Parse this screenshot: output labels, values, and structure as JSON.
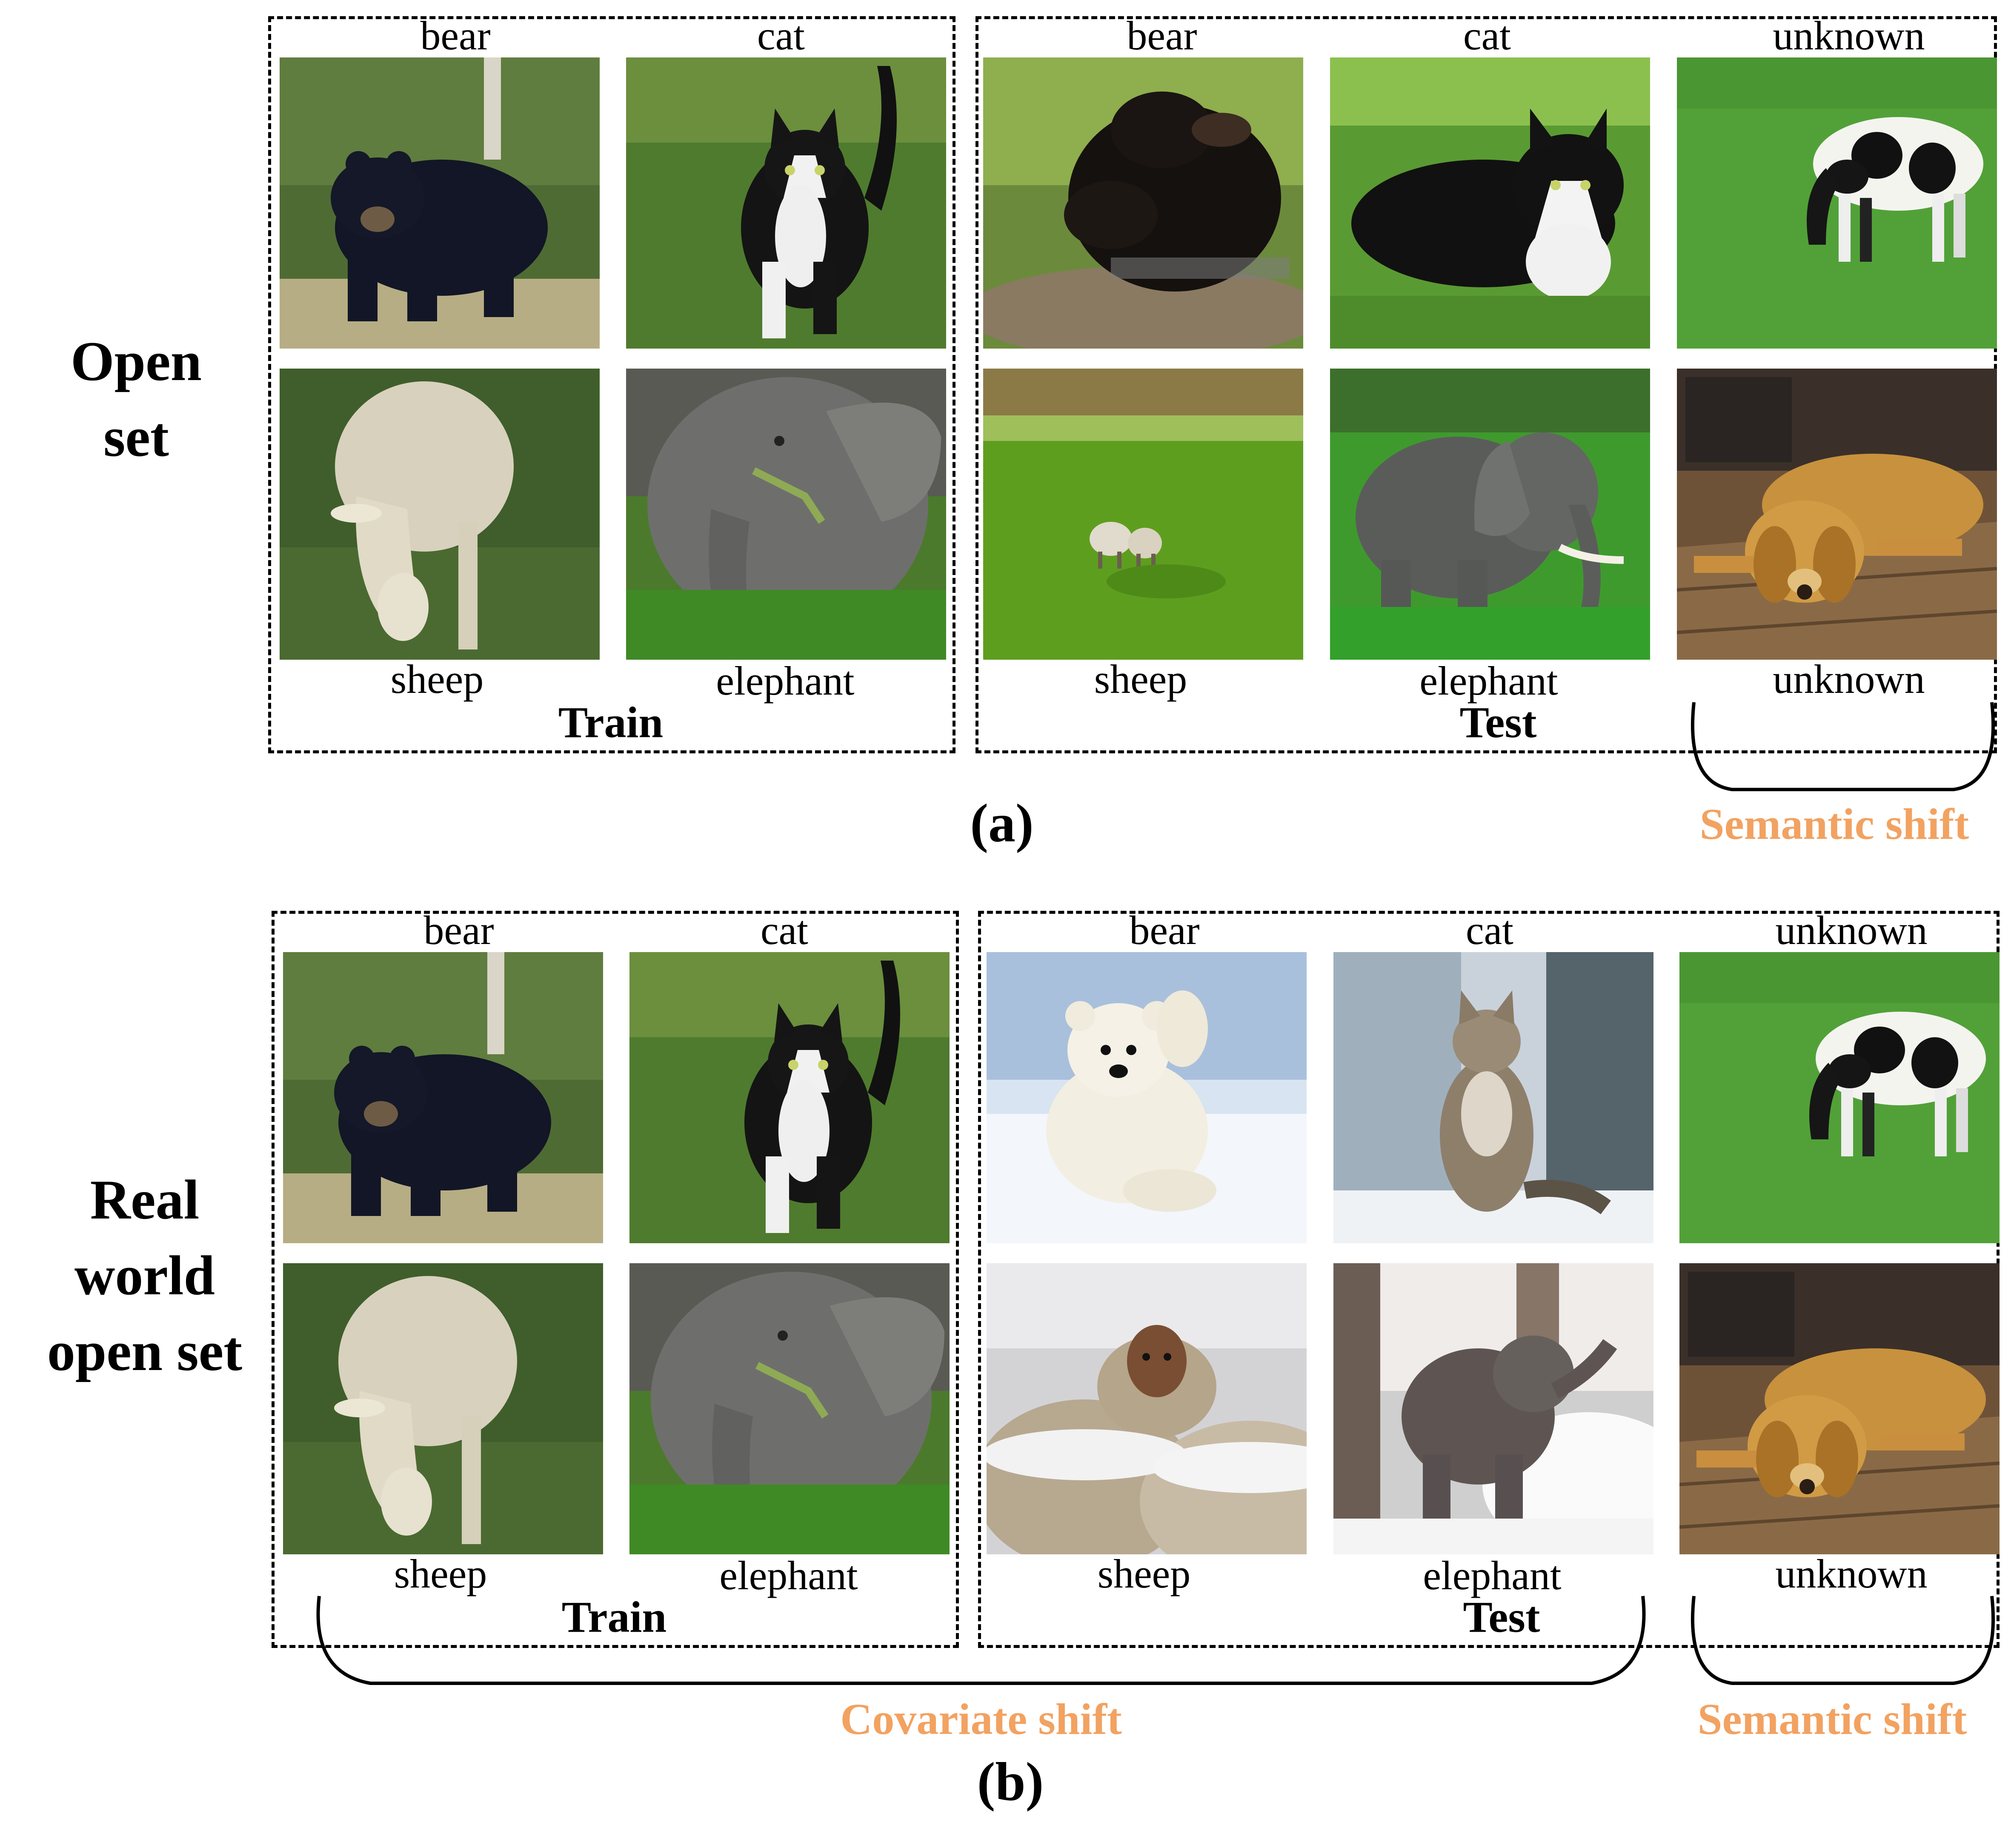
{
  "rows": [
    {
      "title_lines": [
        "Open",
        "set"
      ],
      "panel": "(a)",
      "train_label": "Train",
      "test_label": "Test",
      "train_images": [
        {
          "label": "bear",
          "icon": "black-bear-forest"
        },
        {
          "label": "cat",
          "icon": "black-white-cat-grass"
        },
        {
          "label": "sheep",
          "icon": "sheep-grazing-grass"
        },
        {
          "label": "elephant",
          "icon": "elephant-grass"
        }
      ],
      "test_images": [
        {
          "label": "bear",
          "icon": "black-bear-rock"
        },
        {
          "label": "cat",
          "icon": "black-white-cat-lying-grass"
        },
        {
          "label": "sheep",
          "icon": "sheep-field"
        },
        {
          "label": "elephant",
          "icon": "elephant-meadow"
        }
      ],
      "unknown_images": [
        {
          "label": "unknown",
          "icon": "cow-grass"
        },
        {
          "label": "unknown",
          "icon": "golden-retriever-wood-floor"
        }
      ],
      "shifts": [
        {
          "label": "Semantic shift",
          "color": "#F2A261"
        }
      ]
    },
    {
      "title_lines": [
        "Real",
        "world",
        "open set"
      ],
      "panel": "(b)",
      "train_label": "Train",
      "test_label": "Test",
      "train_images": [
        {
          "label": "bear",
          "icon": "black-bear-forest"
        },
        {
          "label": "cat",
          "icon": "black-white-cat-grass"
        },
        {
          "label": "sheep",
          "icon": "sheep-grazing-grass"
        },
        {
          "label": "elephant",
          "icon": "elephant-grass"
        }
      ],
      "test_images": [
        {
          "label": "bear",
          "icon": "polar-bear-snow"
        },
        {
          "label": "cat",
          "icon": "tabby-cat-snow"
        },
        {
          "label": "sheep",
          "icon": "sheep-snow"
        },
        {
          "label": "elephant",
          "icon": "baby-elephant-snow"
        }
      ],
      "unknown_images": [
        {
          "label": "unknown",
          "icon": "cow-grass"
        },
        {
          "label": "unknown",
          "icon": "golden-retriever-wood-floor"
        }
      ],
      "shifts": [
        {
          "label": "Covariate shift",
          "color": "#F2A261"
        },
        {
          "label": "Semantic shift",
          "color": "#F2A261"
        }
      ]
    }
  ]
}
